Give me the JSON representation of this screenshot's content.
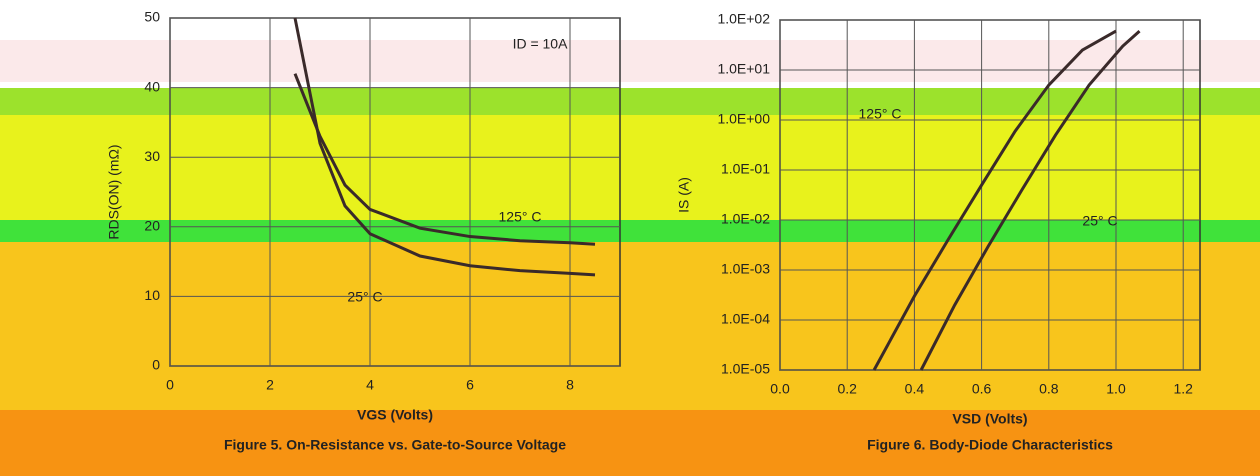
{
  "chart_data": [
    {
      "type": "line",
      "title": "Figure 5. On-Resistance vs. Gate-to-Source Voltage",
      "x_label": "VGS (Volts)",
      "y_label": "RDS(ON) (mΩ)",
      "annotations": [
        "ID = 10A"
      ],
      "xlim": [
        0,
        9
      ],
      "xticks": [
        0,
        2,
        4,
        6,
        8
      ],
      "ylim": [
        0,
        50
      ],
      "yticks": [
        0,
        10,
        20,
        30,
        40,
        50
      ],
      "log_y": false,
      "grid": true,
      "x": [
        2.5,
        3,
        3.5,
        4,
        5,
        6,
        7,
        8,
        8.5
      ],
      "series": [
        {
          "name": "125° C",
          "color": "#3a2a2a",
          "values": [
            42,
            33,
            26,
            22.5,
            19.8,
            18.6,
            18,
            17.7,
            17.5
          ]
        },
        {
          "name": "25° C",
          "color": "#3a2a2a",
          "values": [
            50,
            32,
            23,
            19,
            15.8,
            14.4,
            13.7,
            13.3,
            13.1
          ]
        }
      ]
    },
    {
      "type": "line",
      "title": "Figure 6. Body-Diode Characteristics",
      "x_label": "VSD (Volts)",
      "y_label": "IS (A)",
      "annotations": [],
      "xlim": [
        0,
        1.25
      ],
      "xticks": [
        {
          "value": 0,
          "label": "0.0"
        },
        0.2,
        0.4,
        0.6,
        0.8,
        {
          "value": 1,
          "label": "1.0"
        },
        1.2
      ],
      "ylim": [
        1e-05,
        100
      ],
      "yticks": [
        {
          "value": 1e-05,
          "label": "1.0E-05"
        },
        {
          "value": 0.0001,
          "label": "1.0E-04"
        },
        {
          "value": 0.001,
          "label": "1.0E-03"
        },
        {
          "value": 0.01,
          "label": "1.0E-02"
        },
        {
          "value": 0.1,
          "label": "1.0E-01"
        },
        {
          "value": 1,
          "label": "1.0E+00"
        },
        {
          "value": 10,
          "label": "1.0E+01"
        },
        {
          "value": 100,
          "label": "1.0E+02"
        }
      ],
      "log_y": true,
      "grid": true,
      "series": [
        {
          "name": "125° C",
          "color": "#3a2a2a",
          "x": [
            0.28,
            0.4,
            0.5,
            0.6,
            0.7,
            0.8,
            0.9,
            1.0
          ],
          "values": [
            1e-05,
            0.0003,
            0.004,
            0.05,
            0.6,
            5,
            25,
            60
          ]
        },
        {
          "name": "25° C",
          "color": "#3a2a2a",
          "x": [
            0.42,
            0.52,
            0.62,
            0.72,
            0.82,
            0.92,
            1.02,
            1.07
          ],
          "values": [
            1e-05,
            0.0002,
            0.003,
            0.04,
            0.5,
            5,
            30,
            60
          ]
        }
      ]
    }
  ]
}
